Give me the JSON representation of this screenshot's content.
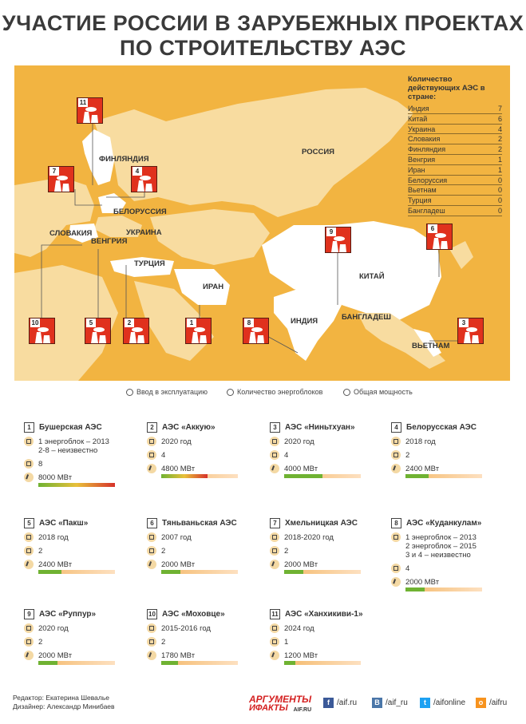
{
  "title": {
    "line1": "УЧАСТИЕ РОССИИ В ЗАРУБЕЖНЫХ ПРОЕКТАХ",
    "line2": "ПО СТРОИТЕЛЬСТВУ АЭС"
  },
  "map": {
    "legend_title": "Количество действующих АЭС в стране:",
    "legend_rows": [
      {
        "country": "Индия",
        "count": "7"
      },
      {
        "country": "Китай",
        "count": "6"
      },
      {
        "country": "Украина",
        "count": "4"
      },
      {
        "country": "Словакия",
        "count": "2"
      },
      {
        "country": "Финляндия",
        "count": "2"
      },
      {
        "country": "Венгрия",
        "count": "1"
      },
      {
        "country": "Иран",
        "count": "1"
      },
      {
        "country": "Белоруссия",
        "count": "0"
      },
      {
        "country": "Вьетнам",
        "count": "0"
      },
      {
        "country": "Турция",
        "count": "0"
      },
      {
        "country": "Бангладеш",
        "count": "0"
      }
    ],
    "countries": {
      "russia": "РОССИЯ",
      "finland": "ФИНЛЯНДИЯ",
      "belarus": "БЕЛОРУССИЯ",
      "ukraine": "УКРАИНА",
      "slovakia": "СЛОВАКИЯ",
      "hungary": "ВЕНГРИЯ",
      "turkey": "ТУРЦИЯ",
      "iran": "ИРАН",
      "china": "КИТАЙ",
      "india": "ИНДИЯ",
      "bangladesh": "БАНГЛАДЕШ",
      "vietnam": "ВЬЕТНАМ"
    },
    "plant_numbers": [
      "11",
      "7",
      "4",
      "9",
      "6",
      "10",
      "5",
      "2",
      "1",
      "8",
      "3"
    ]
  },
  "key": {
    "commissioning": "Ввод в эксплуатацию",
    "units": "Количество энергоблоков",
    "power": "Общая мощность"
  },
  "colors": {
    "map_bg": "#f2b441",
    "land": "#f8dca0",
    "plant_red": "#e0311d",
    "bar_green": "#6fb232",
    "bar_red": "#d6312a"
  },
  "plants": [
    {
      "num": "1",
      "name": "Бушерская АЭС",
      "date": "1 энергоблок – 2013\n2-8 – неизвестно",
      "units": "8",
      "power": "8000 МВт",
      "power_value": 8000
    },
    {
      "num": "2",
      "name": "АЭС «Аккую»",
      "date": "2020 год",
      "units": "4",
      "power": "4800 МВт",
      "power_value": 4800
    },
    {
      "num": "3",
      "name": "АЭС «Ниньтхуан»",
      "date": "2020 год",
      "units": "4",
      "power": "4000 МВт",
      "power_value": 4000
    },
    {
      "num": "4",
      "name": "Белорусская АЭС",
      "date": "2018 год",
      "units": "2",
      "power": "2400 МВт",
      "power_value": 2400
    },
    {
      "num": "5",
      "name": "АЭС «Пакш»",
      "date": "2018 год",
      "units": "2",
      "power": "2400 МВт",
      "power_value": 2400
    },
    {
      "num": "6",
      "name": "Тяньваньская АЭС",
      "date": "2007 год",
      "units": "2",
      "power": "2000 МВт",
      "power_value": 2000
    },
    {
      "num": "7",
      "name": "Хмельницкая АЭС",
      "date": "2018-2020 год",
      "units": "2",
      "power": "2000 МВт",
      "power_value": 2000
    },
    {
      "num": "8",
      "name": "АЭС «Куданкулам»",
      "date": "1 энергоблок – 2013\n2 энергоблок – 2015\n3 и 4 – неизвестно",
      "units": "4",
      "power": "2000 МВт",
      "power_value": 2000
    },
    {
      "num": "9",
      "name": "АЭС «Руппур»",
      "date": "2020 год",
      "units": "2",
      "power": "2000 МВт",
      "power_value": 2000
    },
    {
      "num": "10",
      "name": "АЭС «Моховце»",
      "date": "2015-2016 год",
      "units": "2",
      "power": "1780 МВт",
      "power_value": 1780
    },
    {
      "num": "11",
      "name": "АЭС «Ханхикиви-1»",
      "date": "2024 год",
      "units": "1",
      "power": "1200 МВт",
      "power_value": 1200
    }
  ],
  "footer": {
    "editor": "Редактор: Екатерина Шевалье",
    "designer": "Дизайнер: Александр Минибаев",
    "brand_line1": "АРГУМЕНТЫ",
    "brand_line2": "ИФАКТЫ",
    "brand_sub": "AIF.RU",
    "socials": [
      {
        "icon": "facebook-icon",
        "letter": "f",
        "color": "#3b5998",
        "label": "/aif.ru"
      },
      {
        "icon": "vk-icon",
        "letter": "В",
        "color": "#4a76a8",
        "label": "/aif_ru"
      },
      {
        "icon": "twitter-icon",
        "letter": "t",
        "color": "#1da1f2",
        "label": "/aifonline"
      },
      {
        "icon": "odnoklassniki-icon",
        "letter": "о",
        "color": "#f7931e",
        "label": "/aifru"
      }
    ]
  }
}
